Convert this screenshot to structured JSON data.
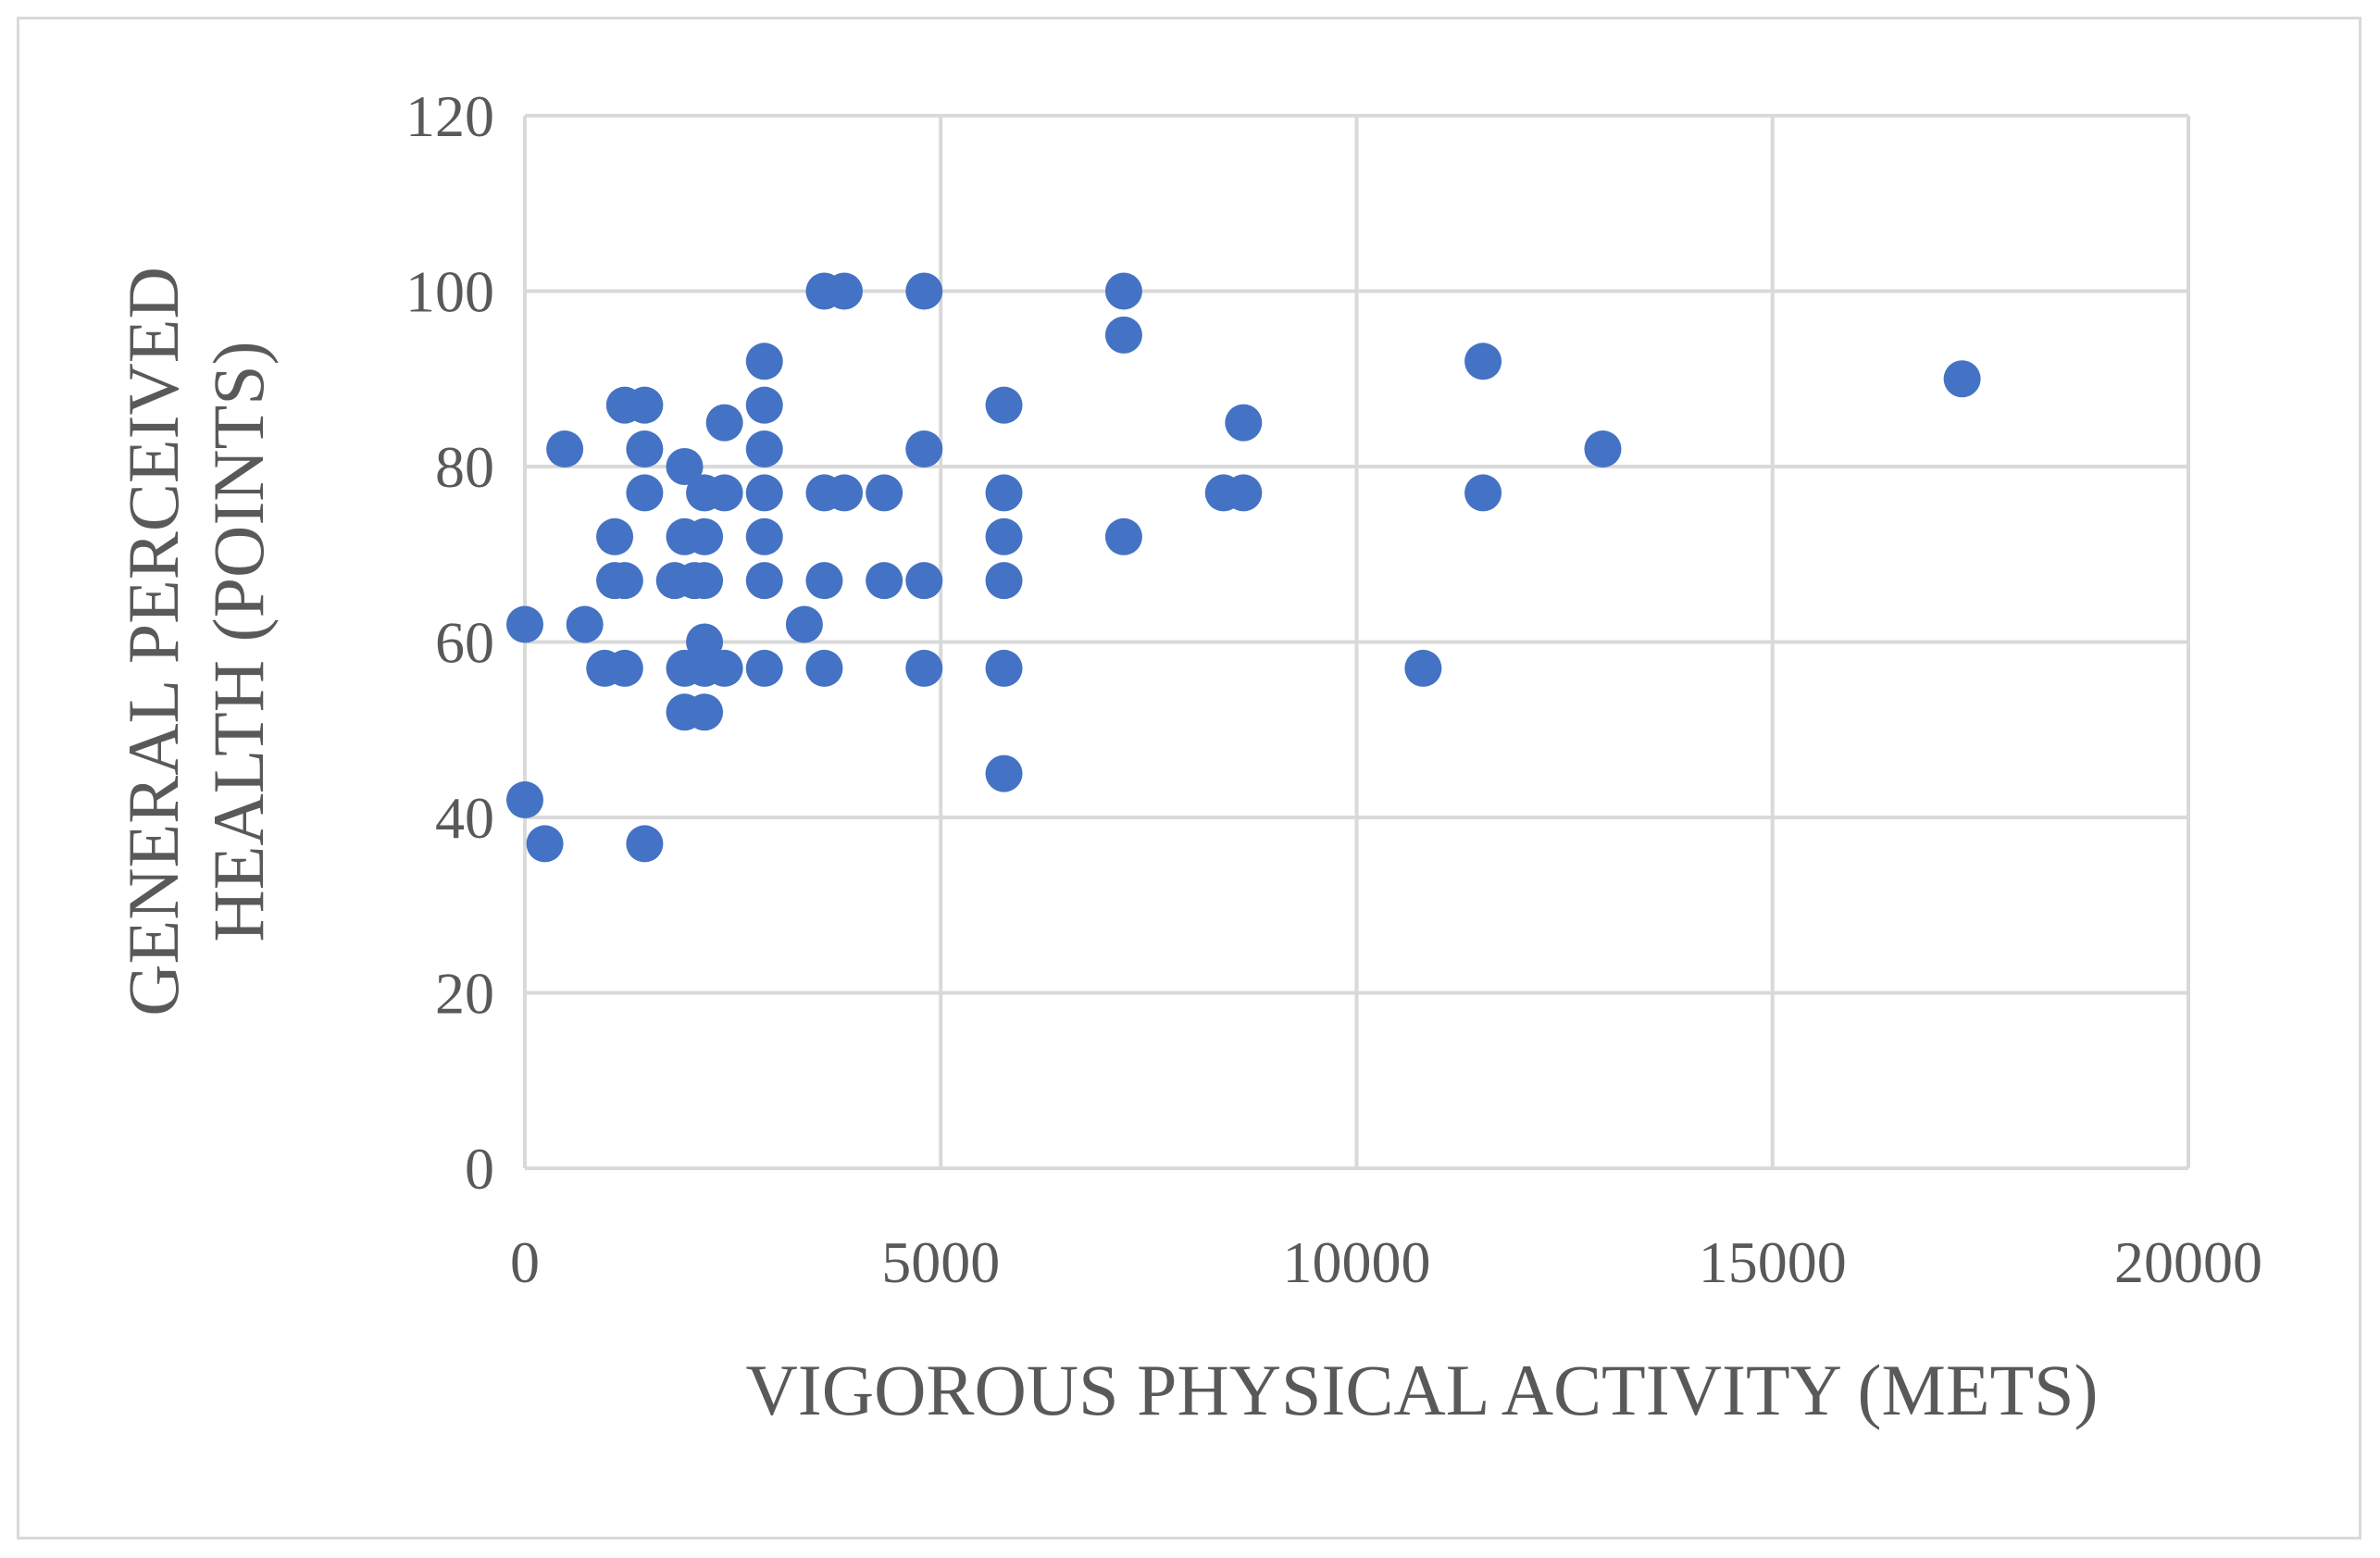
{
  "chart_data": {
    "type": "scatter",
    "title": "",
    "xlabel": "VIGOROUS PHYSICAL ACTIVITY (METS)",
    "ylabel_lines": [
      "GENERAL PERCEIVED",
      "HEALTH (POINTS)"
    ],
    "xlim": [
      0,
      20000
    ],
    "ylim": [
      0,
      120
    ],
    "xticks": [
      0,
      5000,
      10000,
      15000,
      20000
    ],
    "yticks": [
      0,
      20,
      40,
      60,
      80,
      100,
      120
    ],
    "xtick_labels": [
      "0",
      "5000",
      "10000",
      "15000",
      "20000"
    ],
    "ytick_labels": [
      "0",
      "20",
      "40",
      "60",
      "80",
      "100",
      "120"
    ],
    "grid": true,
    "legend": "none",
    "marker_color": "#4472c4",
    "grid_color": "#d9d9d9",
    "text_color": "#595959",
    "points": [
      {
        "x": 0,
        "y": 62
      },
      {
        "x": 0,
        "y": 42
      },
      {
        "x": 240,
        "y": 37
      },
      {
        "x": 480,
        "y": 82
      },
      {
        "x": 720,
        "y": 62
      },
      {
        "x": 960,
        "y": 57
      },
      {
        "x": 1080,
        "y": 72
      },
      {
        "x": 1080,
        "y": 67
      },
      {
        "x": 1200,
        "y": 87
      },
      {
        "x": 1200,
        "y": 67
      },
      {
        "x": 1200,
        "y": 57
      },
      {
        "x": 1440,
        "y": 87
      },
      {
        "x": 1440,
        "y": 82
      },
      {
        "x": 1440,
        "y": 77
      },
      {
        "x": 1440,
        "y": 37
      },
      {
        "x": 1800,
        "y": 67
      },
      {
        "x": 1920,
        "y": 80
      },
      {
        "x": 1920,
        "y": 72
      },
      {
        "x": 1920,
        "y": 57
      },
      {
        "x": 1920,
        "y": 52
      },
      {
        "x": 2040,
        "y": 67
      },
      {
        "x": 2160,
        "y": 77
      },
      {
        "x": 2160,
        "y": 72
      },
      {
        "x": 2160,
        "y": 67
      },
      {
        "x": 2160,
        "y": 60
      },
      {
        "x": 2160,
        "y": 57
      },
      {
        "x": 2160,
        "y": 52
      },
      {
        "x": 2400,
        "y": 85
      },
      {
        "x": 2400,
        "y": 77
      },
      {
        "x": 2400,
        "y": 57
      },
      {
        "x": 2880,
        "y": 92
      },
      {
        "x": 2880,
        "y": 87
      },
      {
        "x": 2880,
        "y": 82
      },
      {
        "x": 2880,
        "y": 77
      },
      {
        "x": 2880,
        "y": 72
      },
      {
        "x": 2880,
        "y": 67
      },
      {
        "x": 2880,
        "y": 57
      },
      {
        "x": 3360,
        "y": 62
      },
      {
        "x": 3600,
        "y": 100
      },
      {
        "x": 3600,
        "y": 77
      },
      {
        "x": 3600,
        "y": 67
      },
      {
        "x": 3600,
        "y": 57
      },
      {
        "x": 3840,
        "y": 100
      },
      {
        "x": 3840,
        "y": 77
      },
      {
        "x": 4320,
        "y": 77
      },
      {
        "x": 4320,
        "y": 67
      },
      {
        "x": 4800,
        "y": 100
      },
      {
        "x": 4800,
        "y": 82
      },
      {
        "x": 4800,
        "y": 67
      },
      {
        "x": 4800,
        "y": 57
      },
      {
        "x": 5760,
        "y": 87
      },
      {
        "x": 5760,
        "y": 77
      },
      {
        "x": 5760,
        "y": 72
      },
      {
        "x": 5760,
        "y": 67
      },
      {
        "x": 5760,
        "y": 57
      },
      {
        "x": 5760,
        "y": 45
      },
      {
        "x": 7200,
        "y": 100
      },
      {
        "x": 7200,
        "y": 95
      },
      {
        "x": 7200,
        "y": 72
      },
      {
        "x": 8400,
        "y": 77
      },
      {
        "x": 8640,
        "y": 85
      },
      {
        "x": 8640,
        "y": 77
      },
      {
        "x": 10800,
        "y": 57
      },
      {
        "x": 11520,
        "y": 92
      },
      {
        "x": 11520,
        "y": 77
      },
      {
        "x": 12960,
        "y": 82
      },
      {
        "x": 17280,
        "y": 90
      }
    ]
  }
}
